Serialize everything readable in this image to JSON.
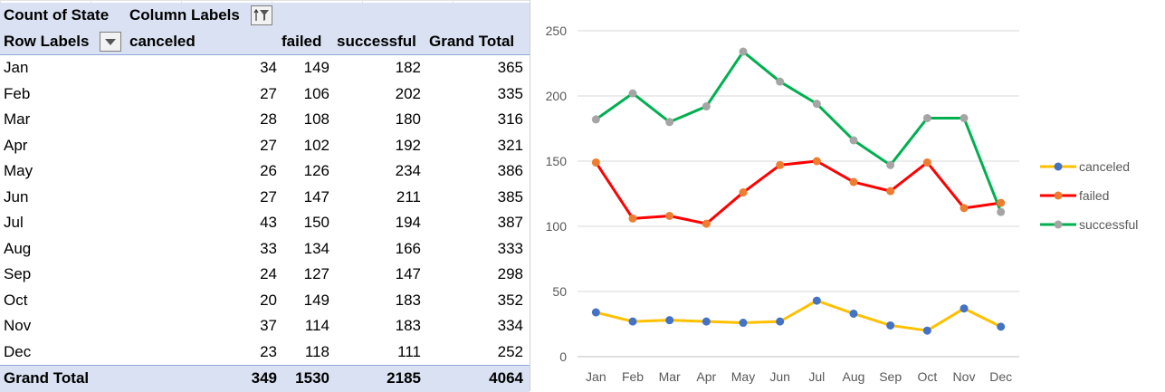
{
  "pivot": {
    "header1": {
      "corner": "Count of State",
      "column_labels": "Column Labels"
    },
    "header2": {
      "row_labels": "Row Labels",
      "col1": "canceled",
      "col2": "failed",
      "col3": "successful",
      "col4": "Grand Total"
    },
    "rows": [
      {
        "month": "Jan",
        "canceled": "34",
        "failed": "149",
        "successful": "182",
        "total": "365"
      },
      {
        "month": "Feb",
        "canceled": "27",
        "failed": "106",
        "successful": "202",
        "total": "335"
      },
      {
        "month": "Mar",
        "canceled": "28",
        "failed": "108",
        "successful": "180",
        "total": "316"
      },
      {
        "month": "Apr",
        "canceled": "27",
        "failed": "102",
        "successful": "192",
        "total": "321"
      },
      {
        "month": "May",
        "canceled": "26",
        "failed": "126",
        "successful": "234",
        "total": "386"
      },
      {
        "month": "Jun",
        "canceled": "27",
        "failed": "147",
        "successful": "211",
        "total": "385"
      },
      {
        "month": "Jul",
        "canceled": "43",
        "failed": "150",
        "successful": "194",
        "total": "387"
      },
      {
        "month": "Aug",
        "canceled": "33",
        "failed": "134",
        "successful": "166",
        "total": "333"
      },
      {
        "month": "Sep",
        "canceled": "24",
        "failed": "127",
        "successful": "147",
        "total": "298"
      },
      {
        "month": "Oct",
        "canceled": "20",
        "failed": "149",
        "successful": "183",
        "total": "352"
      },
      {
        "month": "Nov",
        "canceled": "37",
        "failed": "114",
        "successful": "183",
        "total": "334"
      },
      {
        "month": "Dec",
        "canceled": "23",
        "failed": "118",
        "successful": "111",
        "total": "252"
      }
    ],
    "grand_total": {
      "label": "Grand Total",
      "canceled": "349",
      "failed": "1530",
      "successful": "2185",
      "total": "4064"
    }
  },
  "icons": {
    "filter_button": "column-filter-icon",
    "dropdown_button": "dropdown-arrow-icon"
  },
  "chart_data": {
    "type": "line",
    "title": "",
    "xlabel": "",
    "ylabel": "",
    "categories": [
      "Jan",
      "Feb",
      "Mar",
      "Apr",
      "May",
      "Jun",
      "Jul",
      "Aug",
      "Sep",
      "Oct",
      "Nov",
      "Dec"
    ],
    "ylim": [
      0,
      250
    ],
    "yticks": [
      0,
      50,
      100,
      150,
      200,
      250
    ],
    "grid": true,
    "legend_position": "right",
    "series": [
      {
        "name": "canceled",
        "color": "#ffc000",
        "marker_color": "#4472c4",
        "values": [
          34,
          27,
          28,
          27,
          26,
          27,
          43,
          33,
          24,
          20,
          37,
          23
        ]
      },
      {
        "name": "failed",
        "color": "#ff0000",
        "marker_color": "#ed7d31",
        "values": [
          149,
          106,
          108,
          102,
          126,
          147,
          150,
          134,
          127,
          149,
          114,
          118
        ]
      },
      {
        "name": "successful",
        "color": "#00b050",
        "marker_color": "#a5a5a5",
        "values": [
          182,
          202,
          180,
          192,
          234,
          211,
          194,
          166,
          147,
          183,
          183,
          111
        ]
      }
    ]
  }
}
